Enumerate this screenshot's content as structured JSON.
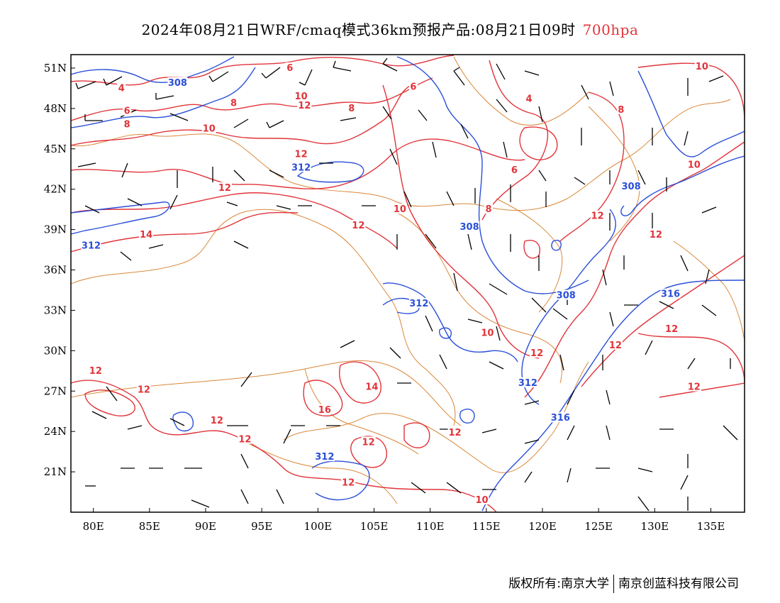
{
  "header": {
    "title": "2024年08月21日WRF/cmaq模式36km预报产品:08月21日09时",
    "level": "700hpa"
  },
  "footer": {
    "copyright": "版权所有:南京大学",
    "company": "南京创蓝科技有限公司"
  },
  "map": {
    "lon_range": [
      78,
      138
    ],
    "lat_range": [
      18,
      52
    ],
    "x_ticks": [
      {
        "lon": 80,
        "label": "80E"
      },
      {
        "lon": 85,
        "label": "85E"
      },
      {
        "lon": 90,
        "label": "90E"
      },
      {
        "lon": 95,
        "label": "95E"
      },
      {
        "lon": 100,
        "label": "100E"
      },
      {
        "lon": 105,
        "label": "105E"
      },
      {
        "lon": 110,
        "label": "110E"
      },
      {
        "lon": 115,
        "label": "115E"
      },
      {
        "lon": 120,
        "label": "120E"
      },
      {
        "lon": 125,
        "label": "125E"
      },
      {
        "lon": 130,
        "label": "130E"
      },
      {
        "lon": 135,
        "label": "135E"
      }
    ],
    "y_ticks": [
      {
        "lat": 51,
        "label": "51N"
      },
      {
        "lat": 48,
        "label": "48N"
      },
      {
        "lat": 45,
        "label": "45N"
      },
      {
        "lat": 42,
        "label": "42N"
      },
      {
        "lat": 39,
        "label": "39N"
      },
      {
        "lat": 36,
        "label": "36N"
      },
      {
        "lat": 33,
        "label": "33N"
      },
      {
        "lat": 30,
        "label": "30N"
      },
      {
        "lat": 27,
        "label": "27N"
      },
      {
        "lat": 24,
        "label": "24N"
      },
      {
        "lat": 21,
        "label": "21N"
      }
    ],
    "colors": {
      "temperature": "#e0343a",
      "height": "#2a4fd8",
      "boundary": "#d9883a",
      "wind": "#000000"
    },
    "temperature_labels": [
      {
        "text": "4",
        "lon": 82.5,
        "lat": 49.5
      },
      {
        "text": "6",
        "lon": 83,
        "lat": 47.8
      },
      {
        "text": "8",
        "lon": 83,
        "lat": 46.8
      },
      {
        "text": "6",
        "lon": 97.5,
        "lat": 51
      },
      {
        "text": "8",
        "lon": 92.5,
        "lat": 48.4
      },
      {
        "text": "10",
        "lon": 90.3,
        "lat": 46.5
      },
      {
        "text": "10",
        "lon": 98.5,
        "lat": 48.9
      },
      {
        "text": "12",
        "lon": 98.8,
        "lat": 48.2
      },
      {
        "text": "6",
        "lon": 108.5,
        "lat": 49.6
      },
      {
        "text": "8",
        "lon": 103,
        "lat": 48
      },
      {
        "text": "12",
        "lon": 98.5,
        "lat": 44.6
      },
      {
        "text": "12",
        "lon": 91.7,
        "lat": 42.1
      },
      {
        "text": "14",
        "lon": 84.7,
        "lat": 38.6
      },
      {
        "text": "10",
        "lon": 107.3,
        "lat": 40.5
      },
      {
        "text": "12",
        "lon": 103.6,
        "lat": 39.3
      },
      {
        "text": "6",
        "lon": 117.5,
        "lat": 43.4
      },
      {
        "text": "4",
        "lon": 118.8,
        "lat": 48.7
      },
      {
        "text": "8",
        "lon": 127,
        "lat": 47.9
      },
      {
        "text": "10",
        "lon": 134.2,
        "lat": 51.1
      },
      {
        "text": "10",
        "lon": 133.5,
        "lat": 43.8
      },
      {
        "text": "8",
        "lon": 115.2,
        "lat": 40.5
      },
      {
        "text": "12",
        "lon": 124.9,
        "lat": 40
      },
      {
        "text": "12",
        "lon": 130.1,
        "lat": 38.6
      },
      {
        "text": "10",
        "lon": 115.1,
        "lat": 31.3
      },
      {
        "text": "12",
        "lon": 119.5,
        "lat": 29.8
      },
      {
        "text": "12",
        "lon": 126.5,
        "lat": 30.4
      },
      {
        "text": "12",
        "lon": 131.5,
        "lat": 31.6
      },
      {
        "text": "12",
        "lon": 133.5,
        "lat": 27.3
      },
      {
        "text": "12",
        "lon": 80.2,
        "lat": 28.5
      },
      {
        "text": "12",
        "lon": 84.5,
        "lat": 27.1
      },
      {
        "text": "12",
        "lon": 91,
        "lat": 24.8
      },
      {
        "text": "12",
        "lon": 93.5,
        "lat": 23.4
      },
      {
        "text": "14",
        "lon": 104.8,
        "lat": 27.3
      },
      {
        "text": "16",
        "lon": 100.6,
        "lat": 25.6
      },
      {
        "text": "12",
        "lon": 104.5,
        "lat": 23.2
      },
      {
        "text": "12",
        "lon": 112.2,
        "lat": 23.9
      },
      {
        "text": "12",
        "lon": 102.7,
        "lat": 20.2
      },
      {
        "text": "10",
        "lon": 114.6,
        "lat": 18.9
      }
    ],
    "height_labels": [
      {
        "text": "308",
        "lon": 87.5,
        "lat": 49.9
      },
      {
        "text": "312",
        "lon": 98.5,
        "lat": 43.6
      },
      {
        "text": "312",
        "lon": 79.8,
        "lat": 37.8
      },
      {
        "text": "308",
        "lon": 113.5,
        "lat": 39.2
      },
      {
        "text": "312",
        "lon": 109,
        "lat": 33.5
      },
      {
        "text": "308",
        "lon": 127.9,
        "lat": 42.2
      },
      {
        "text": "308",
        "lon": 122.1,
        "lat": 34.1
      },
      {
        "text": "316",
        "lon": 131.4,
        "lat": 34.2
      },
      {
        "text": "312",
        "lon": 118.7,
        "lat": 27.6
      },
      {
        "text": "316",
        "lon": 121.6,
        "lat": 25
      },
      {
        "text": "312",
        "lon": 100.6,
        "lat": 22.1
      }
    ]
  }
}
